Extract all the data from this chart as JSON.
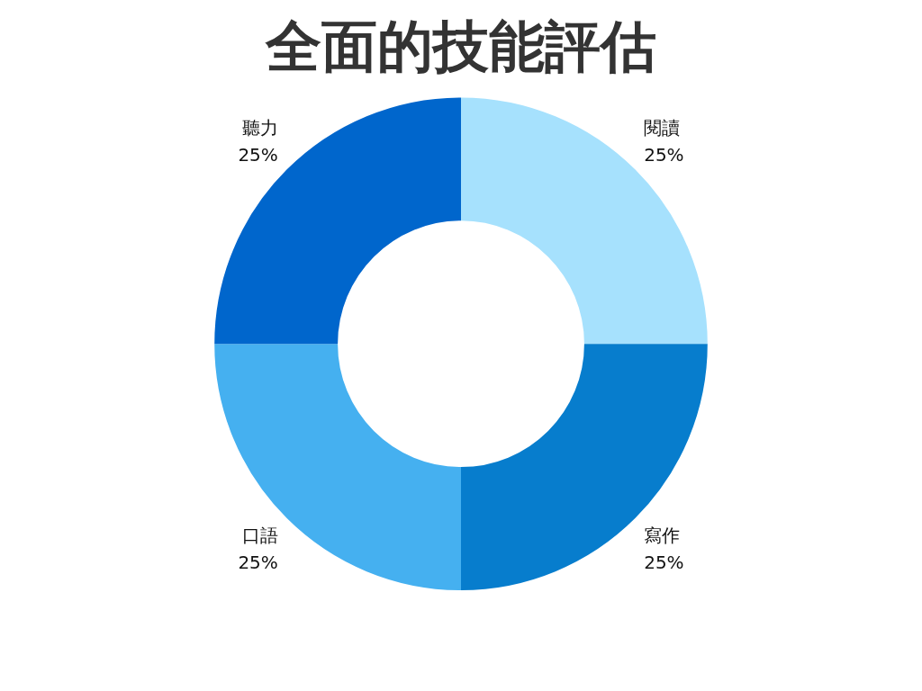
{
  "chart_data": {
    "type": "donut",
    "title": "全面的技能評估",
    "categories": [
      "閱讀",
      "寫作",
      "口語",
      "聽力"
    ],
    "values": [
      25,
      25,
      25,
      25
    ],
    "value_labels": [
      "25%",
      "25%",
      "25%",
      "25%"
    ],
    "colors": [
      "#a6e1fd",
      "#077dcd",
      "#45b0f0",
      "#0066cc"
    ],
    "legend": false
  }
}
